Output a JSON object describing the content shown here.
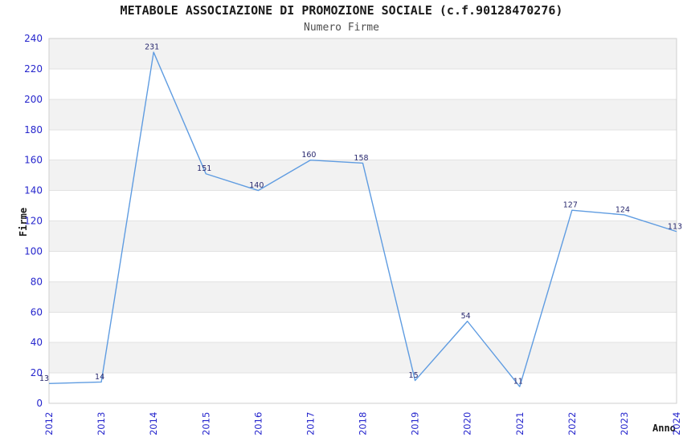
{
  "chart_data": {
    "type": "line",
    "title": "METABOLE ASSOCIAZIONE DI PROMOZIONE SOCIALE (c.f.90128470276)",
    "subtitle": "Numero Firme",
    "xlabel": "Anno",
    "ylabel": "Firme",
    "x": [
      "2012",
      "2013",
      "2014",
      "2015",
      "2016",
      "2017",
      "2018",
      "2019",
      "2020",
      "2021",
      "2022",
      "2023",
      "2024"
    ],
    "values": [
      13,
      14,
      231,
      151,
      140,
      160,
      158,
      15,
      54,
      11,
      127,
      124,
      113
    ],
    "ylim": [
      0,
      240
    ],
    "ytick_step": 20,
    "yticks": [
      0,
      20,
      40,
      60,
      80,
      100,
      120,
      140,
      160,
      180,
      200,
      220,
      240
    ],
    "grid": "horizontal-alternating-bands",
    "legend": "none",
    "point_labels_visible": true,
    "colors": {
      "line": "#5f9ce1",
      "tick_label": "#2626cd",
      "point_label": "#28286e",
      "band": "#f2f2f2",
      "gridline": "#e2e2e2",
      "border": "#cfcfcf",
      "title": "#1a1a1a",
      "subtitle": "#4e4e4e"
    }
  }
}
